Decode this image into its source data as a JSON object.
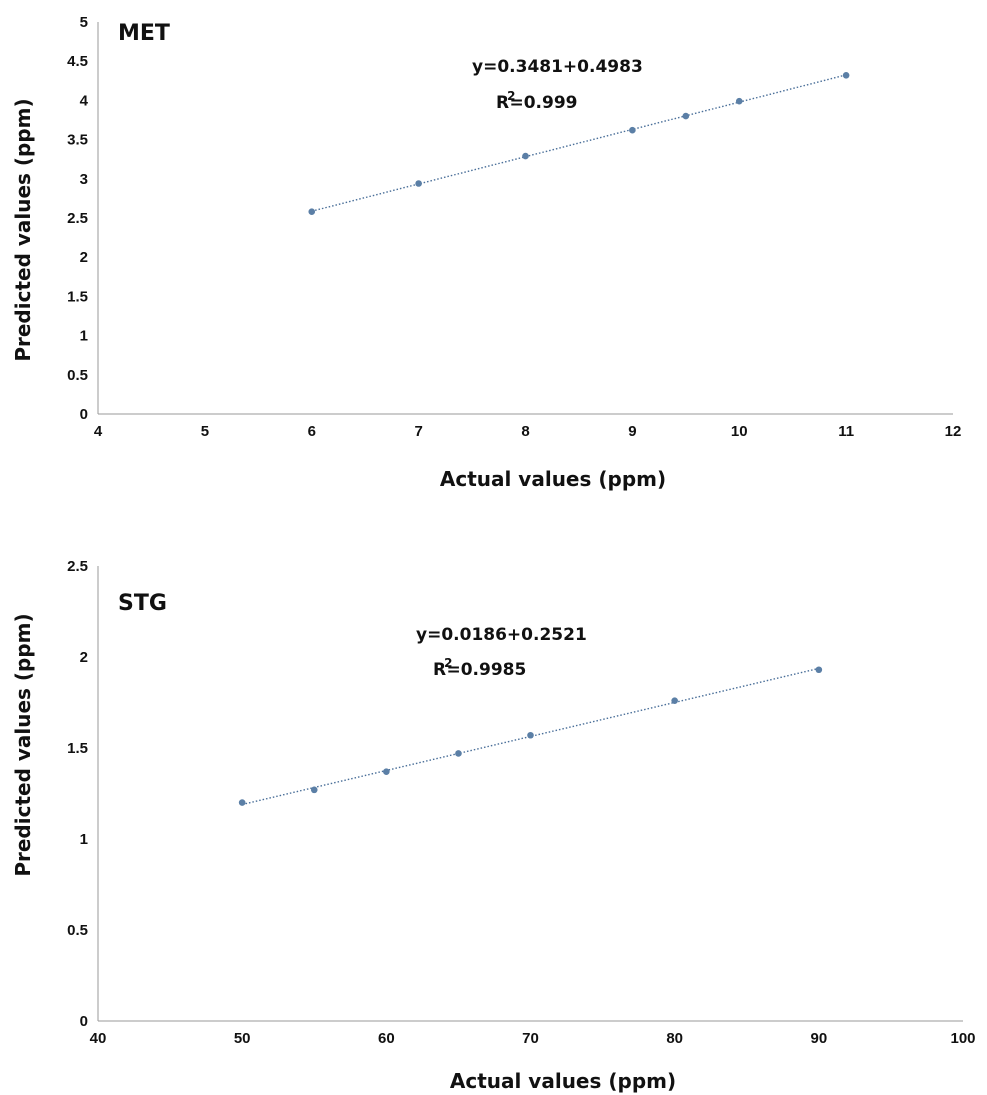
{
  "chart_data": [
    {
      "type": "scatter",
      "title": "MET",
      "xlabel": "Actual values (ppm)",
      "ylabel": "Predicted values (ppm)",
      "xlim": [
        4,
        12
      ],
      "ylim": [
        0,
        5
      ],
      "xticks": [
        "4",
        "5",
        "6",
        "7",
        "8",
        "9",
        "10",
        "11",
        "12"
      ],
      "yticks": [
        "0",
        "0.5",
        "1",
        "1.5",
        "2",
        "2.5",
        "3",
        "3.5",
        "4",
        "4.5",
        "5"
      ],
      "trendline": {
        "intercept": 0.3481,
        "slope": 0.4983,
        "style": "dotted"
      },
      "equation": "y=0.3481+0.4983",
      "r2_label": "R",
      "r2_exp": "2",
      "r2_value": "=0.999",
      "grid": false,
      "color": "#5b7fa6",
      "series": [
        {
          "x": [
            6,
            7,
            8,
            9,
            9.5,
            10,
            11
          ],
          "y": [
            2.58,
            2.94,
            3.29,
            3.62,
            3.8,
            3.99,
            4.32
          ]
        }
      ]
    },
    {
      "type": "scatter",
      "title": "STG",
      "xlabel": "Actual values (ppm)",
      "ylabel": "Predicted values (ppm)",
      "xlim": [
        40,
        100
      ],
      "ylim": [
        0,
        2.5
      ],
      "xticks": [
        "40",
        "50",
        "60",
        "70",
        "80",
        "90",
        "100"
      ],
      "yticks": [
        "0",
        "0.5",
        "1",
        "1.5",
        "2",
        "2.5"
      ],
      "trendline": {
        "intercept": 0.0186,
        "slope": 0.2521,
        "style": "dotted"
      },
      "equation": "y=0.0186+0.2521",
      "r2_label": "R",
      "r2_exp": "2",
      "r2_value": "=0.9985",
      "grid": false,
      "color": "#5b7fa6",
      "series": [
        {
          "x": [
            50,
            55,
            60,
            65,
            70,
            80,
            90
          ],
          "y": [
            1.2,
            1.27,
            1.37,
            1.47,
            1.57,
            1.76,
            1.93
          ]
        }
      ]
    }
  ]
}
